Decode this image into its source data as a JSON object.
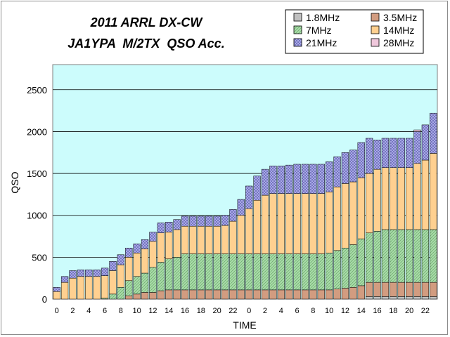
{
  "chart_data": {
    "type": "bar",
    "stacked": true,
    "cumulative": true,
    "title": "2011 ARRL DX-CW",
    "subtitle": "JA1YPA  M/2TX  QSO Acc.",
    "xlabel": "TIME",
    "ylabel": "QSO",
    "ylim": [
      0,
      2800
    ],
    "yticks": [
      0,
      500,
      1000,
      1500,
      2000,
      2500
    ],
    "x_tick_labels": [
      "0",
      "2",
      "4",
      "6",
      "8",
      "10",
      "12",
      "14",
      "16",
      "18",
      "20",
      "22",
      "0",
      "2",
      "4",
      "6",
      "8",
      "10",
      "12",
      "14",
      "16",
      "18",
      "20",
      "22"
    ],
    "grid": true,
    "legend_position": "top-right",
    "categories": [
      "0",
      "1",
      "2",
      "3",
      "4",
      "5",
      "6",
      "7",
      "8",
      "9",
      "10",
      "11",
      "12",
      "13",
      "14",
      "15",
      "16",
      "17",
      "18",
      "19",
      "20",
      "21",
      "22",
      "23",
      "0",
      "1",
      "2",
      "3",
      "4",
      "5",
      "6",
      "7",
      "8",
      "9",
      "10",
      "11",
      "12",
      "13",
      "14",
      "15",
      "16",
      "17",
      "18",
      "19",
      "20",
      "21",
      "22",
      "23"
    ],
    "series": [
      {
        "name": "1.8MHz",
        "color": "#c0c0c0",
        "pattern": "solid",
        "values": [
          0,
          0,
          0,
          0,
          0,
          0,
          0,
          0,
          0,
          0,
          0,
          0,
          0,
          0,
          0,
          0,
          0,
          0,
          0,
          0,
          0,
          0,
          0,
          0,
          0,
          0,
          0,
          0,
          0,
          0,
          0,
          0,
          0,
          0,
          0,
          0,
          0,
          0,
          0,
          30,
          30,
          30,
          30,
          30,
          30,
          30,
          30,
          30
        ]
      },
      {
        "name": "3.5MHz",
        "color": "#d29c80",
        "pattern": "solid",
        "values": [
          0,
          0,
          0,
          0,
          0,
          0,
          0,
          0,
          0,
          40,
          60,
          80,
          80,
          100,
          110,
          110,
          110,
          110,
          110,
          110,
          110,
          110,
          110,
          110,
          110,
          110,
          110,
          110,
          110,
          110,
          110,
          110,
          110,
          110,
          110,
          120,
          130,
          140,
          160,
          170,
          170,
          170,
          170,
          170,
          170,
          170,
          170,
          170
        ]
      },
      {
        "name": "7MHz",
        "color": "#a8dca8",
        "pattern": "hatch",
        "values": [
          0,
          0,
          0,
          0,
          0,
          0,
          10,
          60,
          140,
          180,
          210,
          230,
          300,
          340,
          370,
          390,
          430,
          430,
          430,
          430,
          430,
          430,
          430,
          430,
          430,
          430,
          430,
          430,
          430,
          430,
          430,
          430,
          430,
          430,
          440,
          460,
          480,
          510,
          560,
          590,
          610,
          630,
          630,
          630,
          630,
          630,
          630,
          630
        ]
      },
      {
        "name": "14MHz",
        "color": "#ffd090",
        "pattern": "solid",
        "values": [
          90,
          200,
          250,
          270,
          270,
          270,
          270,
          280,
          270,
          280,
          280,
          290,
          310,
          350,
          320,
          330,
          330,
          330,
          330,
          330,
          330,
          340,
          390,
          460,
          540,
          640,
          700,
          720,
          720,
          720,
          720,
          720,
          720,
          720,
          730,
          760,
          770,
          750,
          730,
          710,
          740,
          740,
          740,
          740,
          740,
          790,
          830,
          910
        ]
      },
      {
        "name": "21MHz",
        "color": "#b0b0ec",
        "pattern": "cross",
        "values": [
          50,
          70,
          90,
          80,
          80,
          80,
          90,
          110,
          120,
          110,
          110,
          110,
          110,
          120,
          120,
          120,
          120,
          120,
          120,
          120,
          120,
          120,
          140,
          190,
          270,
          290,
          310,
          330,
          330,
          340,
          350,
          350,
          350,
          350,
          360,
          360,
          370,
          380,
          420,
          420,
          350,
          350,
          350,
          350,
          350,
          380,
          420,
          480
        ]
      },
      {
        "name": "28MHz",
        "color": "#f0c8dc",
        "pattern": "solid",
        "values": [
          0,
          0,
          0,
          0,
          0,
          0,
          0,
          0,
          0,
          0,
          0,
          0,
          0,
          0,
          0,
          0,
          0,
          0,
          0,
          0,
          0,
          0,
          0,
          0,
          0,
          0,
          0,
          0,
          0,
          0,
          0,
          0,
          0,
          0,
          0,
          0,
          0,
          0,
          0,
          0,
          0,
          0,
          0,
          0,
          0,
          20,
          0,
          0
        ]
      }
    ]
  }
}
